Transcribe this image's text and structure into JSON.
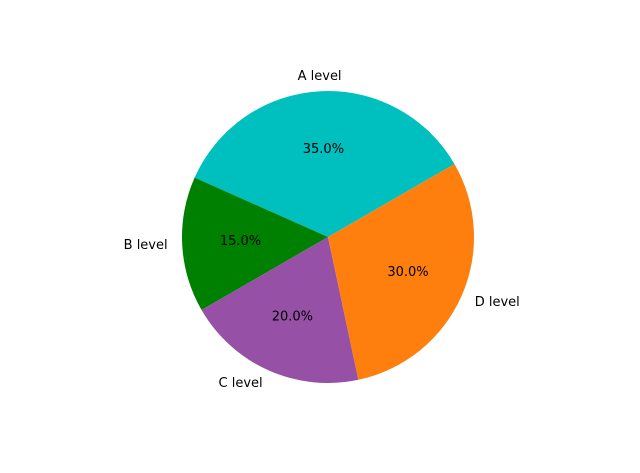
{
  "chart_data": {
    "type": "pie",
    "title": "",
    "slices": [
      {
        "label": "A level",
        "value": 35.0,
        "pct_text": "35.0%",
        "color": "#00bfbf"
      },
      {
        "label": "B level",
        "value": 15.0,
        "pct_text": "15.0%",
        "color": "#008000"
      },
      {
        "label": "C level",
        "value": 20.0,
        "pct_text": "20.0%",
        "color": "#9650a5"
      },
      {
        "label": "D level",
        "value": 30.0,
        "pct_text": "30.0%",
        "color": "#ff7f0e"
      }
    ],
    "start_angle_deg": 30,
    "direction": "counterclockwise"
  }
}
